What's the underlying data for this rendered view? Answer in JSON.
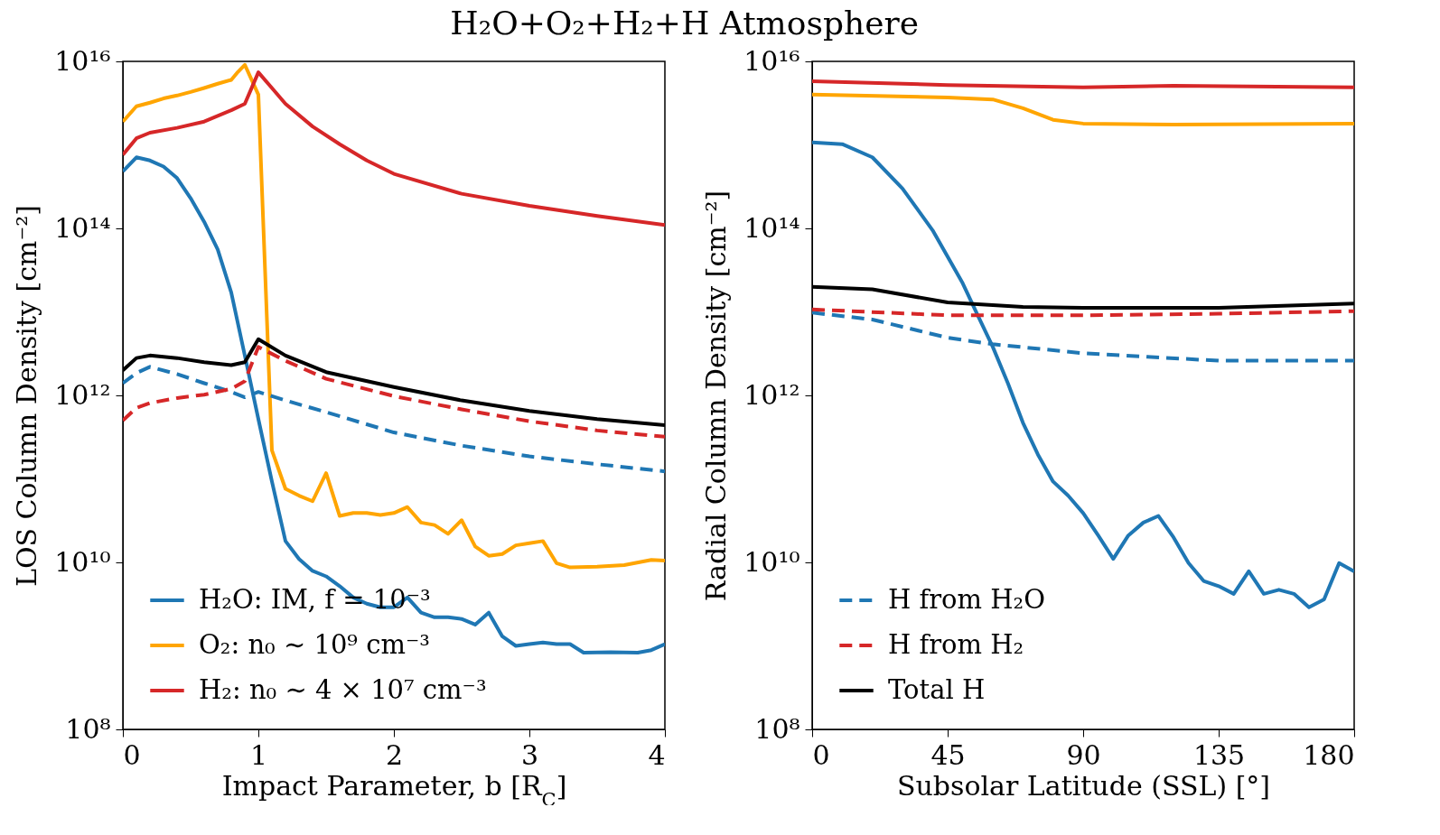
{
  "chart_data": [
    {
      "type": "line",
      "title": "H₂O+O₂+H₂+H Atmosphere",
      "xlabel": "Impact Parameter, b [R$_{C}$]",
      "ylabel": "LOS Column Density [cm⁻²]",
      "log": "y",
      "grid": false,
      "legend": "bottom left",
      "xlim": [
        0,
        4
      ],
      "xticks": [
        0,
        1,
        2,
        3,
        4
      ],
      "ylim": [
        100000000.0,
        1e+16
      ],
      "yticks": [
        {
          "value": 100000000.0,
          "label": "10⁸"
        },
        {
          "value": 10000000000.0,
          "label": "10¹⁰"
        },
        {
          "value": 1000000000000.0,
          "label": "10¹²"
        },
        {
          "value": 100000000000000.0,
          "label": "10¹⁴"
        },
        {
          "value": 1e+16,
          "label": "10¹⁶"
        }
      ],
      "series": [
        {
          "name": "H₂O: IM, f = 10⁻³",
          "color": "#1f77b4",
          "line_style": "solid",
          "x": [
            0,
            0.1,
            0.2,
            0.3,
            0.4,
            0.5,
            0.6,
            0.7,
            0.8,
            0.9,
            1.0,
            1.1,
            1.2,
            1.3,
            1.4,
            1.5,
            1.6,
            1.7,
            1.8,
            1.9,
            2.0,
            2.1,
            2.2,
            2.3,
            2.4,
            2.5,
            2.6,
            2.7,
            2.8,
            2.9,
            3.0,
            3.1,
            3.2,
            3.3,
            3.4,
            3.6,
            3.8,
            3.9,
            4.0
          ],
          "values": [
            480000000000000.0,
            710000000000000.0,
            650000000000000.0,
            550000000000000.0,
            400000000000000.0,
            230000000000000.0,
            120000000000000.0,
            56000000000000.0,
            17000000000000.0,
            3000000000000.0,
            520000000000.0,
            93000000000.0,
            18000000000.0,
            11000000000.0,
            7900000000.0,
            6800000000.0,
            5200000000.0,
            3800000000.0,
            3200000000.0,
            2900000000.0,
            2900000000.0,
            3800000000.0,
            2500000000.0,
            2200000000.0,
            2200000000.0,
            2100000000.0,
            1800000000.0,
            2500000000.0,
            1300000000.0,
            1000000000.0,
            1050000000.0,
            1100000000.0,
            1050000000.0,
            1050000000.0,
            830000000.0,
            840000000.0,
            830000000.0,
            890000000.0,
            1050000000.0
          ]
        },
        {
          "name": "O₂: n₀ ∼ 10⁹ cm⁻³",
          "color": "#ffa500",
          "line_style": "solid",
          "x": [
            0,
            0.1,
            0.2,
            0.3,
            0.4,
            0.5,
            0.6,
            0.7,
            0.8,
            0.85,
            0.9,
            1.0,
            1.1,
            1.2,
            1.3,
            1.4,
            1.5,
            1.6,
            1.7,
            1.8,
            1.9,
            2.0,
            2.1,
            2.2,
            2.3,
            2.4,
            2.5,
            2.6,
            2.7,
            2.8,
            2.9,
            3.0,
            3.1,
            3.2,
            3.3,
            3.5,
            3.7,
            3.9,
            4.0
          ],
          "values": [
            1900000000000000.0,
            2900000000000000.0,
            3200000000000000.0,
            3600000000000000.0,
            3900000000000000.0,
            4300000000000000.0,
            4800000000000000.0,
            5400000000000000.0,
            6000000000000000.0,
            7500000000000000.0,
            9100000000000000.0,
            4000000000000000.0,
            220000000000.0,
            76000000000.0,
            63000000000.0,
            54000000000.0,
            117000000000.0,
            36000000000.0,
            39000000000.0,
            39000000000.0,
            37000000000.0,
            39000000000.0,
            46000000000.0,
            30000000000.0,
            28000000000.0,
            22000000000.0,
            32000000000.0,
            15500000000.0,
            12000000000.0,
            12600000000.0,
            16000000000.0,
            17000000000.0,
            18000000000.0,
            9800000000.0,
            8700000000.0,
            8900000000.0,
            9300000000.0,
            10700000000.0,
            10500000000.0
          ]
        },
        {
          "name": "H₂: n₀ ∼ 4 × 10⁷ cm⁻³",
          "color": "#d62728",
          "line_style": "solid",
          "x": [
            0,
            0.1,
            0.2,
            0.4,
            0.6,
            0.8,
            0.9,
            1.0,
            1.1,
            1.2,
            1.4,
            1.6,
            1.8,
            2.0,
            2.5,
            3.0,
            3.5,
            4.0
          ],
          "values": [
            760000000000000.0,
            1200000000000000.0,
            1400000000000000.0,
            1600000000000000.0,
            1900000000000000.0,
            2600000000000000.0,
            3100000000000000.0,
            7400000000000000.0,
            4800000000000000.0,
            3100000000000000.0,
            1660000000000000.0,
            1020000000000000.0,
            650000000000000.0,
            450000000000000.0,
            260000000000000.0,
            186000000000000.0,
            141000000000000.0,
            110000000000000.0
          ]
        },
        {
          "color": "#1f77b4",
          "line_style": "dashed",
          "x": [
            0,
            0.1,
            0.2,
            0.4,
            0.6,
            0.8,
            0.9,
            1.0,
            1.2,
            1.5,
            2.0,
            2.5,
            3.0,
            3.5,
            4.0
          ],
          "values": [
            1400000000000.0,
            1850000000000.0,
            2200000000000.0,
            1800000000000.0,
            1400000000000.0,
            1100000000000.0,
            950000000000.0,
            1100000000000.0,
            870000000000.0,
            630000000000.0,
            360000000000.0,
            250000000000.0,
            186000000000.0,
            150000000000.0,
            123000000000.0
          ]
        },
        {
          "color": "#d62728",
          "line_style": "dashed",
          "x": [
            0,
            0.1,
            0.2,
            0.4,
            0.6,
            0.8,
            0.9,
            1.0,
            1.2,
            1.5,
            2.0,
            2.5,
            3.0,
            3.5,
            4.0
          ],
          "values": [
            500000000000.0,
            710000000000.0,
            810000000000.0,
            930000000000.0,
            1020000000000.0,
            1200000000000.0,
            1480000000000.0,
            3800000000000.0,
            2600000000000.0,
            1580000000000.0,
            980000000000.0,
            680000000000.0,
            490000000000.0,
            380000000000.0,
            320000000000.0
          ]
        },
        {
          "color": "#000000",
          "line_style": "solid",
          "x": [
            0,
            0.1,
            0.2,
            0.4,
            0.6,
            0.8,
            0.9,
            1.0,
            1.2,
            1.5,
            2.0,
            2.5,
            3.0,
            3.5,
            4.0
          ],
          "values": [
            2000000000000.0,
            2800000000000.0,
            3000000000000.0,
            2800000000000.0,
            2500000000000.0,
            2300000000000.0,
            2500000000000.0,
            4700000000000.0,
            3000000000000.0,
            1900000000000.0,
            1260000000000.0,
            870000000000.0,
            650000000000.0,
            520000000000.0,
            440000000000.0
          ]
        }
      ]
    },
    {
      "type": "line",
      "xlabel": "Subsolar Latitude (SSL) [°]",
      "ylabel": "Radial Column Density [cm⁻²]",
      "log": "y",
      "grid": false,
      "legend": "bottom left",
      "xlim": [
        0,
        180
      ],
      "xticks": [
        0,
        45,
        90,
        135,
        180
      ],
      "ylim": [
        100000000.0,
        1e+16
      ],
      "yticks": [
        {
          "value": 100000000.0,
          "label": "10⁸"
        },
        {
          "value": 10000000000.0,
          "label": "10¹⁰"
        },
        {
          "value": 1000000000000.0,
          "label": "10¹²"
        },
        {
          "value": 100000000000000.0,
          "label": "10¹⁴"
        },
        {
          "value": 1e+16,
          "label": "10¹⁶"
        }
      ],
      "series": [
        {
          "color": "#1f77b4",
          "line_style": "solid",
          "x": [
            0,
            10,
            20,
            30,
            40,
            50,
            55,
            60,
            65,
            70,
            75,
            80,
            85,
            90,
            95,
            100,
            105,
            110,
            115,
            120,
            125,
            130,
            135,
            140,
            145,
            150,
            155,
            160,
            165,
            170,
            175,
            180
          ],
          "values": [
            1070000000000000.0,
            1020000000000000.0,
            710000000000000.0,
            300000000000000.0,
            95000000000000.0,
            22000000000000.0,
            9100000000000.0,
            3800000000000.0,
            1400000000000.0,
            470000000000.0,
            195000000000.0,
            93000000000.0,
            63000000000.0,
            39000000000.0,
            21000000000.0,
            11000000000.0,
            21000000000.0,
            30000000000.0,
            36000000000.0,
            20000000000.0,
            9800000000.0,
            6000000000.0,
            5200000000.0,
            4200000000.0,
            7800000000.0,
            4200000000.0,
            4700000000.0,
            4200000000.0,
            2900000000.0,
            3600000000.0,
            9800000000.0,
            7800000000.0
          ]
        },
        {
          "color": "#ffa500",
          "line_style": "solid",
          "x": [
            0,
            45,
            60,
            70,
            80,
            90,
            120,
            180
          ],
          "values": [
            4000000000000000.0,
            3700000000000000.0,
            3500000000000000.0,
            2750000000000000.0,
            2000000000000000.0,
            1800000000000000.0,
            1750000000000000.0,
            1800000000000000.0
          ]
        },
        {
          "color": "#d62728",
          "line_style": "solid",
          "x": [
            0,
            45,
            90,
            120,
            180
          ],
          "values": [
            5800000000000000.0,
            5200000000000000.0,
            4900000000000000.0,
            5100000000000000.0,
            4900000000000000.0
          ]
        },
        {
          "name": "H from H₂O",
          "color": "#1f77b4",
          "line_style": "dashed",
          "x": [
            0,
            20,
            45,
            60,
            90,
            135,
            180
          ],
          "values": [
            9800000000000.0,
            8100000000000.0,
            4900000000000.0,
            4100000000000.0,
            3200000000000.0,
            2600000000000.0,
            2600000000000.0
          ]
        },
        {
          "name": "H from H₂",
          "color": "#d62728",
          "line_style": "dashed",
          "x": [
            0,
            45,
            90,
            135,
            180
          ],
          "values": [
            10700000000000.0,
            9100000000000.0,
            9100000000000.0,
            9500000000000.0,
            10200000000000.0
          ]
        },
        {
          "name": "Total H",
          "color": "#000000",
          "line_style": "solid",
          "x": [
            0,
            20,
            45,
            70,
            90,
            135,
            180
          ],
          "values": [
            20000000000000.0,
            18600000000000.0,
            13000000000000.0,
            11500000000000.0,
            11200000000000.0,
            11200000000000.0,
            12600000000000.0
          ]
        }
      ]
    }
  ]
}
